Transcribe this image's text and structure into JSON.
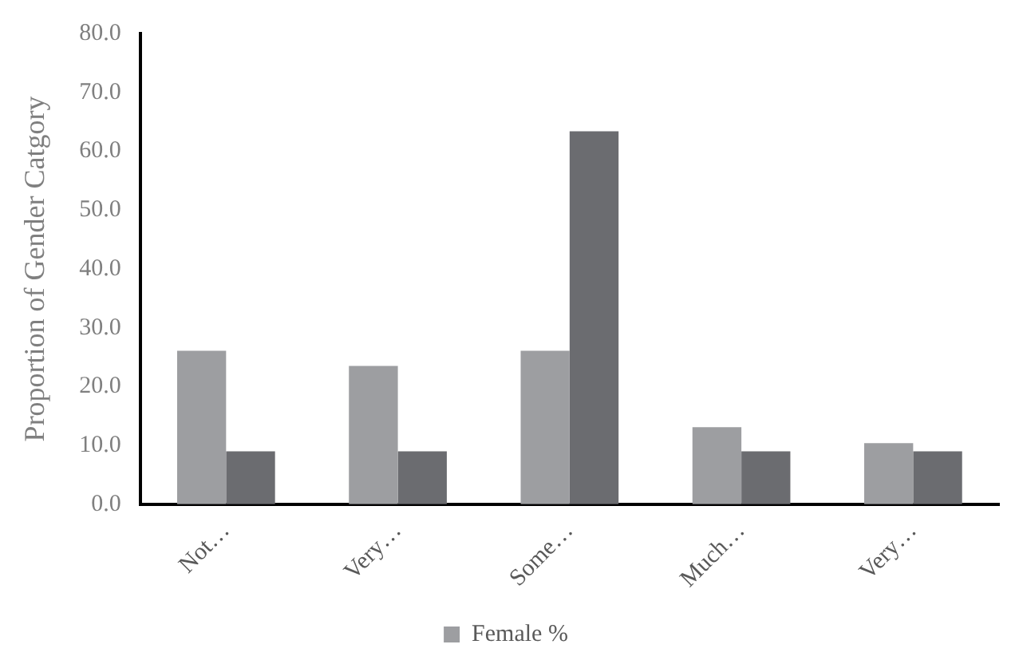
{
  "chart_data": {
    "type": "bar",
    "ylabel": "Proportion of Gender Catgory",
    "categories": [
      "Not…",
      "Very…",
      "Some…",
      "Much…",
      "Very…"
    ],
    "series": [
      {
        "name": "Female %",
        "color": "#9d9ea1",
        "values": [
          26.1,
          23.5,
          26.1,
          13.1,
          10.4
        ]
      },
      {
        "color": "#6b6c70",
        "values": [
          9.0,
          9.0,
          63.4,
          9.0,
          9.0
        ]
      }
    ],
    "ylim": [
      0,
      80
    ],
    "yticks": [
      {
        "value": 0,
        "label": "0.0"
      },
      {
        "value": 10,
        "label": "10.0"
      },
      {
        "value": 20,
        "label": "20.0"
      },
      {
        "value": 30,
        "label": "30.0"
      },
      {
        "value": 40,
        "label": "40.0"
      },
      {
        "value": 50,
        "label": "50.0"
      },
      {
        "value": 60,
        "label": "60.0"
      },
      {
        "value": 70,
        "label": "70.0"
      },
      {
        "value": 80,
        "label": "80.0"
      }
    ],
    "grid": false,
    "legend": "bottom"
  }
}
